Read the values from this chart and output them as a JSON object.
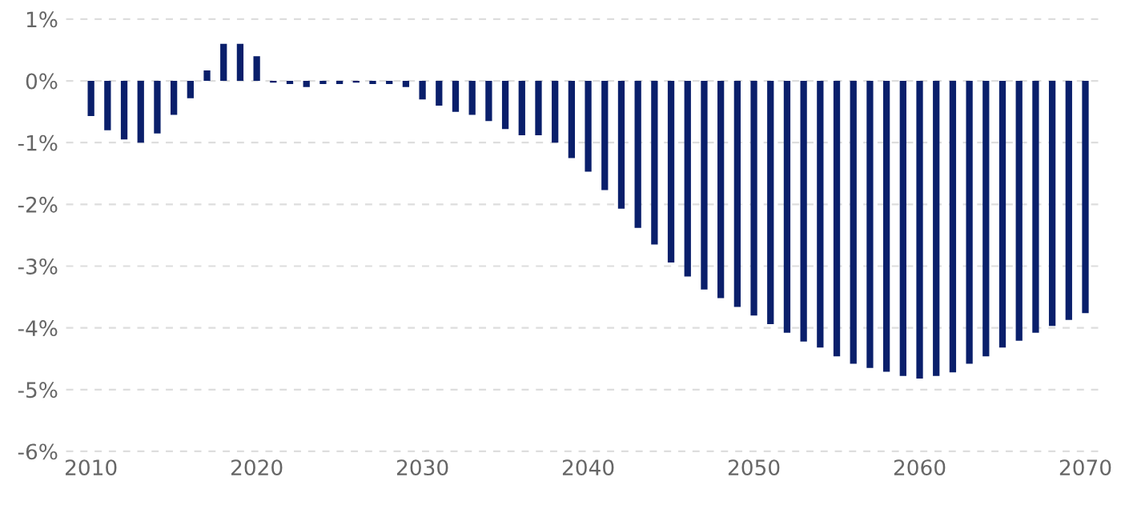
{
  "chart_data": {
    "type": "bar",
    "x": [
      2010,
      2011,
      2012,
      2013,
      2014,
      2015,
      2016,
      2017,
      2018,
      2019,
      2020,
      2021,
      2022,
      2023,
      2024,
      2025,
      2026,
      2027,
      2028,
      2029,
      2030,
      2031,
      2032,
      2033,
      2034,
      2035,
      2036,
      2037,
      2038,
      2039,
      2040,
      2041,
      2042,
      2043,
      2044,
      2045,
      2046,
      2047,
      2048,
      2049,
      2050,
      2051,
      2052,
      2053,
      2054,
      2055,
      2056,
      2057,
      2058,
      2059,
      2060,
      2061,
      2062,
      2063,
      2064,
      2065,
      2066,
      2067,
      2068,
      2069,
      2070
    ],
    "series": [
      {
        "color": "#0a1f6b",
        "values": [
          -0.57,
          -0.8,
          -0.95,
          -1.0,
          -0.85,
          -0.55,
          -0.28,
          0.17,
          0.6,
          0.6,
          0.4,
          -0.03,
          -0.05,
          -0.1,
          -0.05,
          -0.05,
          -0.03,
          -0.05,
          -0.05,
          -0.1,
          -0.3,
          -0.4,
          -0.5,
          -0.55,
          -0.65,
          -0.78,
          -0.88,
          -0.88,
          -1.0,
          -1.25,
          -1.47,
          -1.77,
          -2.07,
          -2.38,
          -2.65,
          -2.94,
          -3.17,
          -3.38,
          -3.52,
          -3.66,
          -3.8,
          -3.94,
          -4.08,
          -4.22,
          -4.32,
          -4.46,
          -4.58,
          -4.65,
          -4.71,
          -4.78,
          -4.82,
          -4.78,
          -4.72,
          -4.58,
          -4.46,
          -4.32,
          -4.21,
          -4.08,
          -3.97,
          -3.87,
          -3.76
        ]
      }
    ],
    "xlim": [
      2008.5,
      2071
    ],
    "xticks": [
      2010,
      2020,
      2030,
      2040,
      2050,
      2060,
      2070
    ],
    "ylim": [
      -6,
      1
    ],
    "yticks": [
      {
        "value": 1,
        "label": "1%"
      },
      {
        "value": 0,
        "label": "0%"
      },
      {
        "value": -1,
        "label": "-1%"
      },
      {
        "value": -2,
        "label": "-2%"
      },
      {
        "value": -3,
        "label": "-3%"
      },
      {
        "value": -4,
        "label": "-4%"
      },
      {
        "value": -5,
        "label": "-5%"
      },
      {
        "value": -6,
        "label": "-6%"
      }
    ],
    "grid": "y"
  }
}
